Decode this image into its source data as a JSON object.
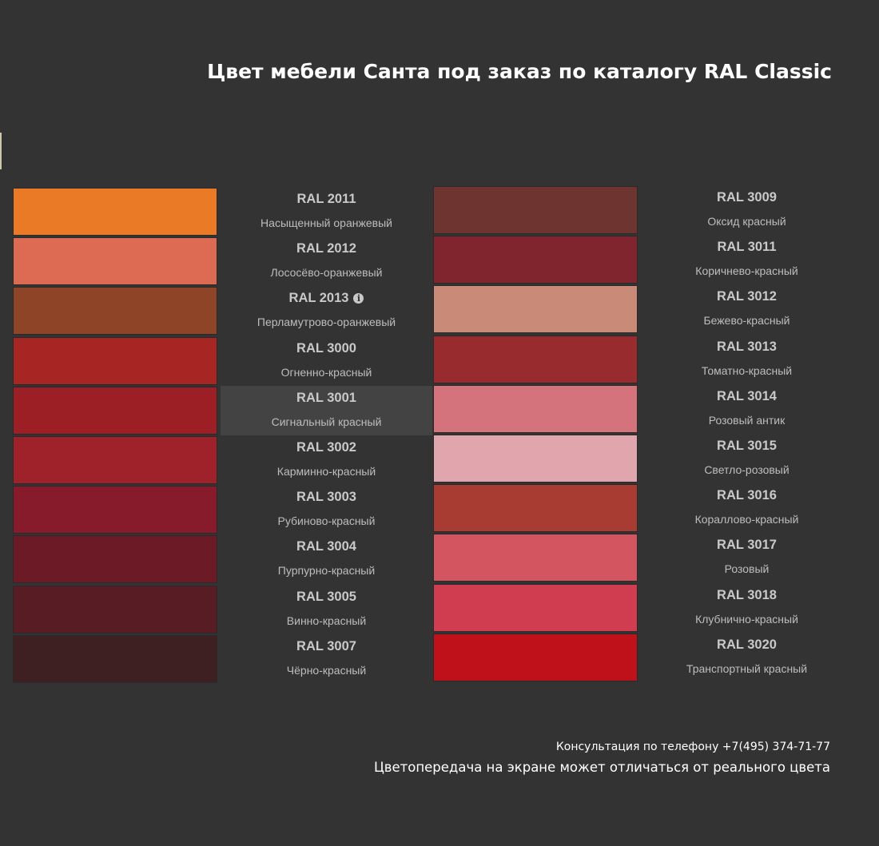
{
  "title": "Цвет мебели Санта под заказ по каталогу RAL Classic",
  "left_colors": [
    {
      "code": "RAL 2011",
      "name": "Насыщенный оранжевый",
      "hex": "#EB7A27",
      "info": false,
      "highlight": false
    },
    {
      "code": "RAL 2012",
      "name": "Лососёво-оранжевый",
      "hex": "#DD6A53",
      "info": false,
      "highlight": false
    },
    {
      "code": "RAL 2013",
      "name": "Перламутрово-оранжевый",
      "hex": "#8E4427",
      "info": true,
      "highlight": false
    },
    {
      "code": "RAL 3000",
      "name": "Огненно-красный",
      "hex": "#A72523",
      "info": false,
      "highlight": false
    },
    {
      "code": "RAL 3001",
      "name": "Сигнальный красный",
      "hex": "#9C1F26",
      "info": false,
      "highlight": true
    },
    {
      "code": "RAL 3002",
      "name": "Карминно-красный",
      "hex": "#9F222A",
      "info": false,
      "highlight": false
    },
    {
      "code": "RAL 3003",
      "name": "Рубиново-красный",
      "hex": "#871B2B",
      "info": false,
      "highlight": false
    },
    {
      "code": "RAL 3004",
      "name": "Пурпурно-красный",
      "hex": "#6C1A25",
      "info": false,
      "highlight": false
    },
    {
      "code": "RAL 3005",
      "name": "Винно-красный",
      "hex": "#581D24",
      "info": false,
      "highlight": false
    },
    {
      "code": "RAL 3007",
      "name": "Чёрно-красный",
      "hex": "#3E2022",
      "info": false,
      "highlight": false
    }
  ],
  "right_colors": [
    {
      "code": "RAL 3009",
      "name": "Оксид красный",
      "hex": "#6E3430",
      "info": false,
      "highlight": false
    },
    {
      "code": "RAL 3011",
      "name": "Коричнево-красный",
      "hex": "#80252D",
      "info": false,
      "highlight": false
    },
    {
      "code": "RAL 3012",
      "name": "Бежево-красный",
      "hex": "#C98B77",
      "info": false,
      "highlight": false
    },
    {
      "code": "RAL 3013",
      "name": "Томатно-красный",
      "hex": "#982B2D",
      "info": false,
      "highlight": false
    },
    {
      "code": "RAL 3014",
      "name": "Розовый антик",
      "hex": "#D4737C",
      "info": false,
      "highlight": false
    },
    {
      "code": "RAL 3015",
      "name": "Светло-розовый",
      "hex": "#E1A6AD",
      "info": false,
      "highlight": false
    },
    {
      "code": "RAL 3016",
      "name": "Кораллово-красный",
      "hex": "#A83C33",
      "info": false,
      "highlight": false
    },
    {
      "code": "RAL 3017",
      "name": "Розовый",
      "hex": "#D35560",
      "info": false,
      "highlight": false
    },
    {
      "code": "RAL 3018",
      "name": "Клубнично-красный",
      "hex": "#D03D50",
      "info": false,
      "highlight": false
    },
    {
      "code": "RAL 3020",
      "name": "Транспортный красный",
      "hex": "#BE111A",
      "info": false,
      "highlight": false
    }
  ],
  "footer": {
    "phone_text": "Консультация по телефону +7(495) 374-71-77",
    "note": "Цветопередача на экране может отличаться от реального цвета"
  }
}
